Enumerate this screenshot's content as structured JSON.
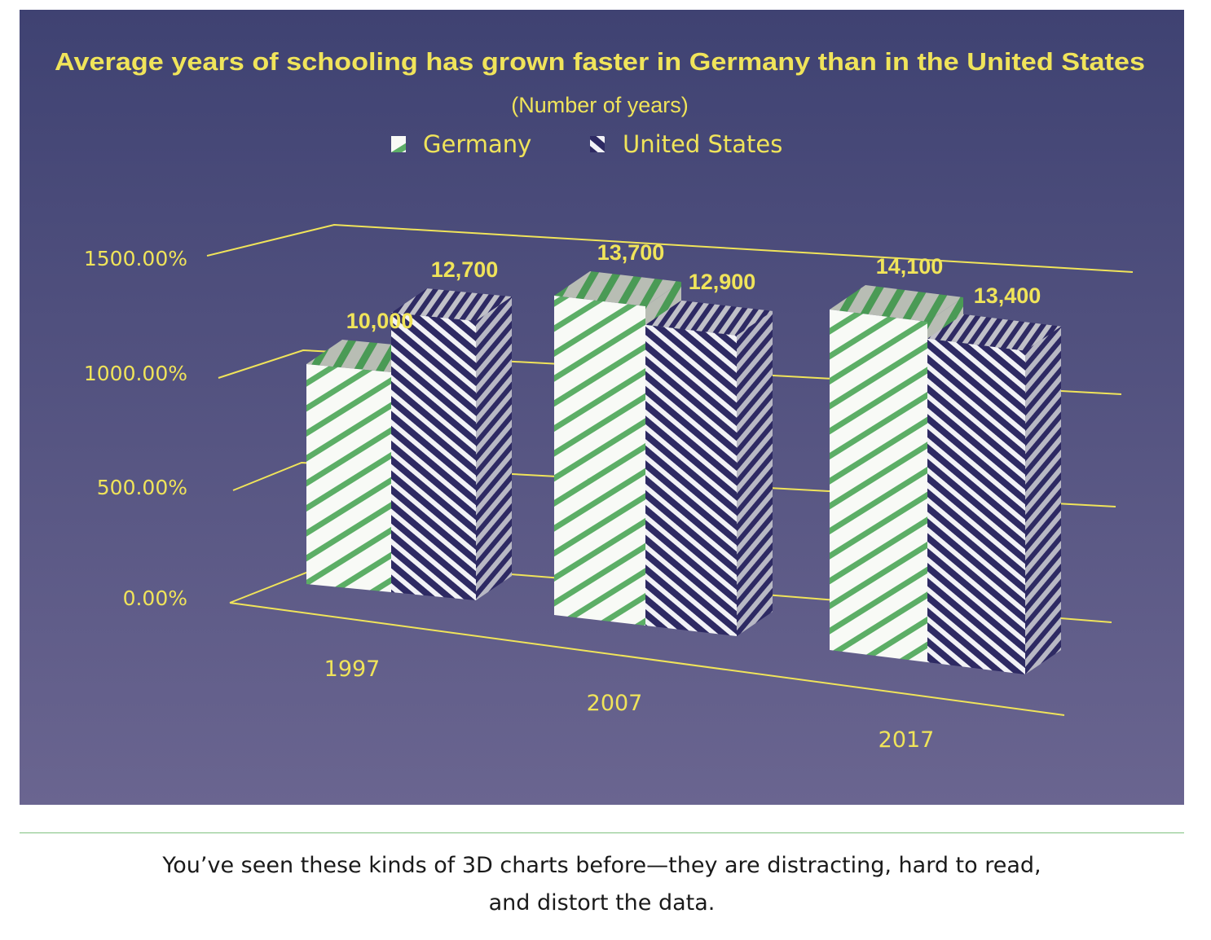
{
  "chart_data": {
    "type": "bar",
    "title": "Average years of schooling has grown faster in Germany than in the United States",
    "subtitle": "(Number of years)",
    "categories": [
      "1997",
      "2007",
      "2017"
    ],
    "series": [
      {
        "name": "Germany",
        "values": [
          10000,
          13700,
          14100
        ],
        "labels": [
          "10,000",
          "13,700",
          "14,100"
        ],
        "color": "#5cae66"
      },
      {
        "name": "United States",
        "values": [
          12700,
          12900,
          13400
        ],
        "labels": [
          "12,700",
          "12,900",
          "13,400"
        ],
        "color": "#2e2a63"
      }
    ],
    "y_ticks": [
      "0.00%",
      "500.00%",
      "1000.00%",
      "1500.00%"
    ],
    "ylim": [
      0,
      15000
    ],
    "legend": "top-center",
    "style": "3d-hatched-bars"
  },
  "colors": {
    "accent": "#f0e45a",
    "panel_top": "#3f4272",
    "panel_bottom": "#6a6590",
    "divider": "#7fc17f"
  },
  "caption": {
    "line1": "You’ve seen these kinds of 3D charts before—they are distracting, hard to read,",
    "line2": "and distort the data."
  }
}
